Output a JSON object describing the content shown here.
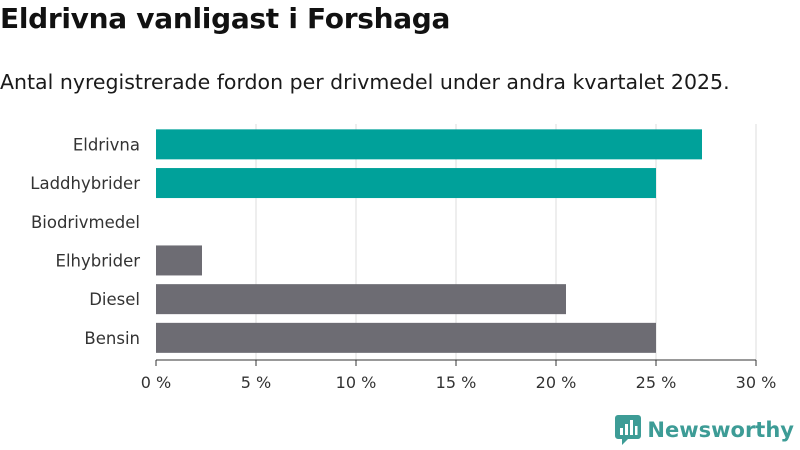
{
  "header": {
    "title": "Eldrivna vanligast i Forshaga",
    "subtitle": "Antal nyregistrerade fordon per drivmedel under andra kvartalet 2025."
  },
  "brand": {
    "name": "Newsworthy",
    "icon": "newsworthy-logo-icon",
    "color": "#3d9c96"
  },
  "chart_data": {
    "type": "bar",
    "orientation": "horizontal",
    "categories": [
      "Eldrivna",
      "Laddhybrider",
      "Biodrivmedel",
      "Elhybrider",
      "Diesel",
      "Bensin"
    ],
    "values": [
      27.3,
      25.0,
      0,
      2.3,
      20.5,
      25.0
    ],
    "bar_colors": [
      "#00a19a",
      "#00a19a",
      "#00a19a",
      "#6d6c73",
      "#6d6c73",
      "#6d6c73"
    ],
    "xlim": [
      0,
      30
    ],
    "xticks": [
      0,
      5,
      10,
      15,
      20,
      25,
      30
    ],
    "xtick_labels": [
      "0 %",
      "5 %",
      "10 %",
      "15 %",
      "20 %",
      "25 %",
      "30 %"
    ],
    "grid": true,
    "gridline_color": "#dddddd"
  }
}
